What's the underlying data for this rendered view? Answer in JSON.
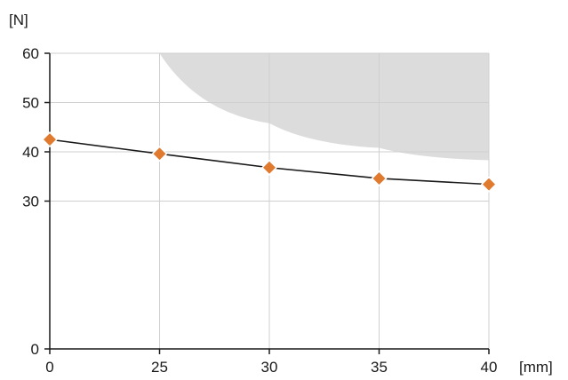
{
  "chart_data": {
    "type": "line",
    "categories": [
      "0",
      "25",
      "30",
      "35",
      "40"
    ],
    "series": [
      {
        "values": [
          42.5,
          39.6,
          36.8,
          34.6,
          33.4
        ]
      }
    ],
    "ylim": [
      0,
      60
    ],
    "yticks": [
      "0",
      "30",
      "40",
      "50",
      "60"
    ],
    "y_unit": "[N]",
    "x_unit": "[mm]",
    "grid": true,
    "shaded_region": {
      "description": "gray area above boundary curve",
      "boundary": [
        {
          "x": "25",
          "y": 60
        },
        {
          "x": "30",
          "y": 45.8
        },
        {
          "x": "35",
          "y": 40.8
        },
        {
          "x": "40",
          "y": 38.3
        }
      ]
    },
    "colors": {
      "marker_fill": "#e07a2e",
      "marker_stroke": "#ffffff",
      "line": "#1a1a1a",
      "shade": "#dcdcdc",
      "grid": "#cfcfcf",
      "axis": "#1a1a1a"
    }
  }
}
